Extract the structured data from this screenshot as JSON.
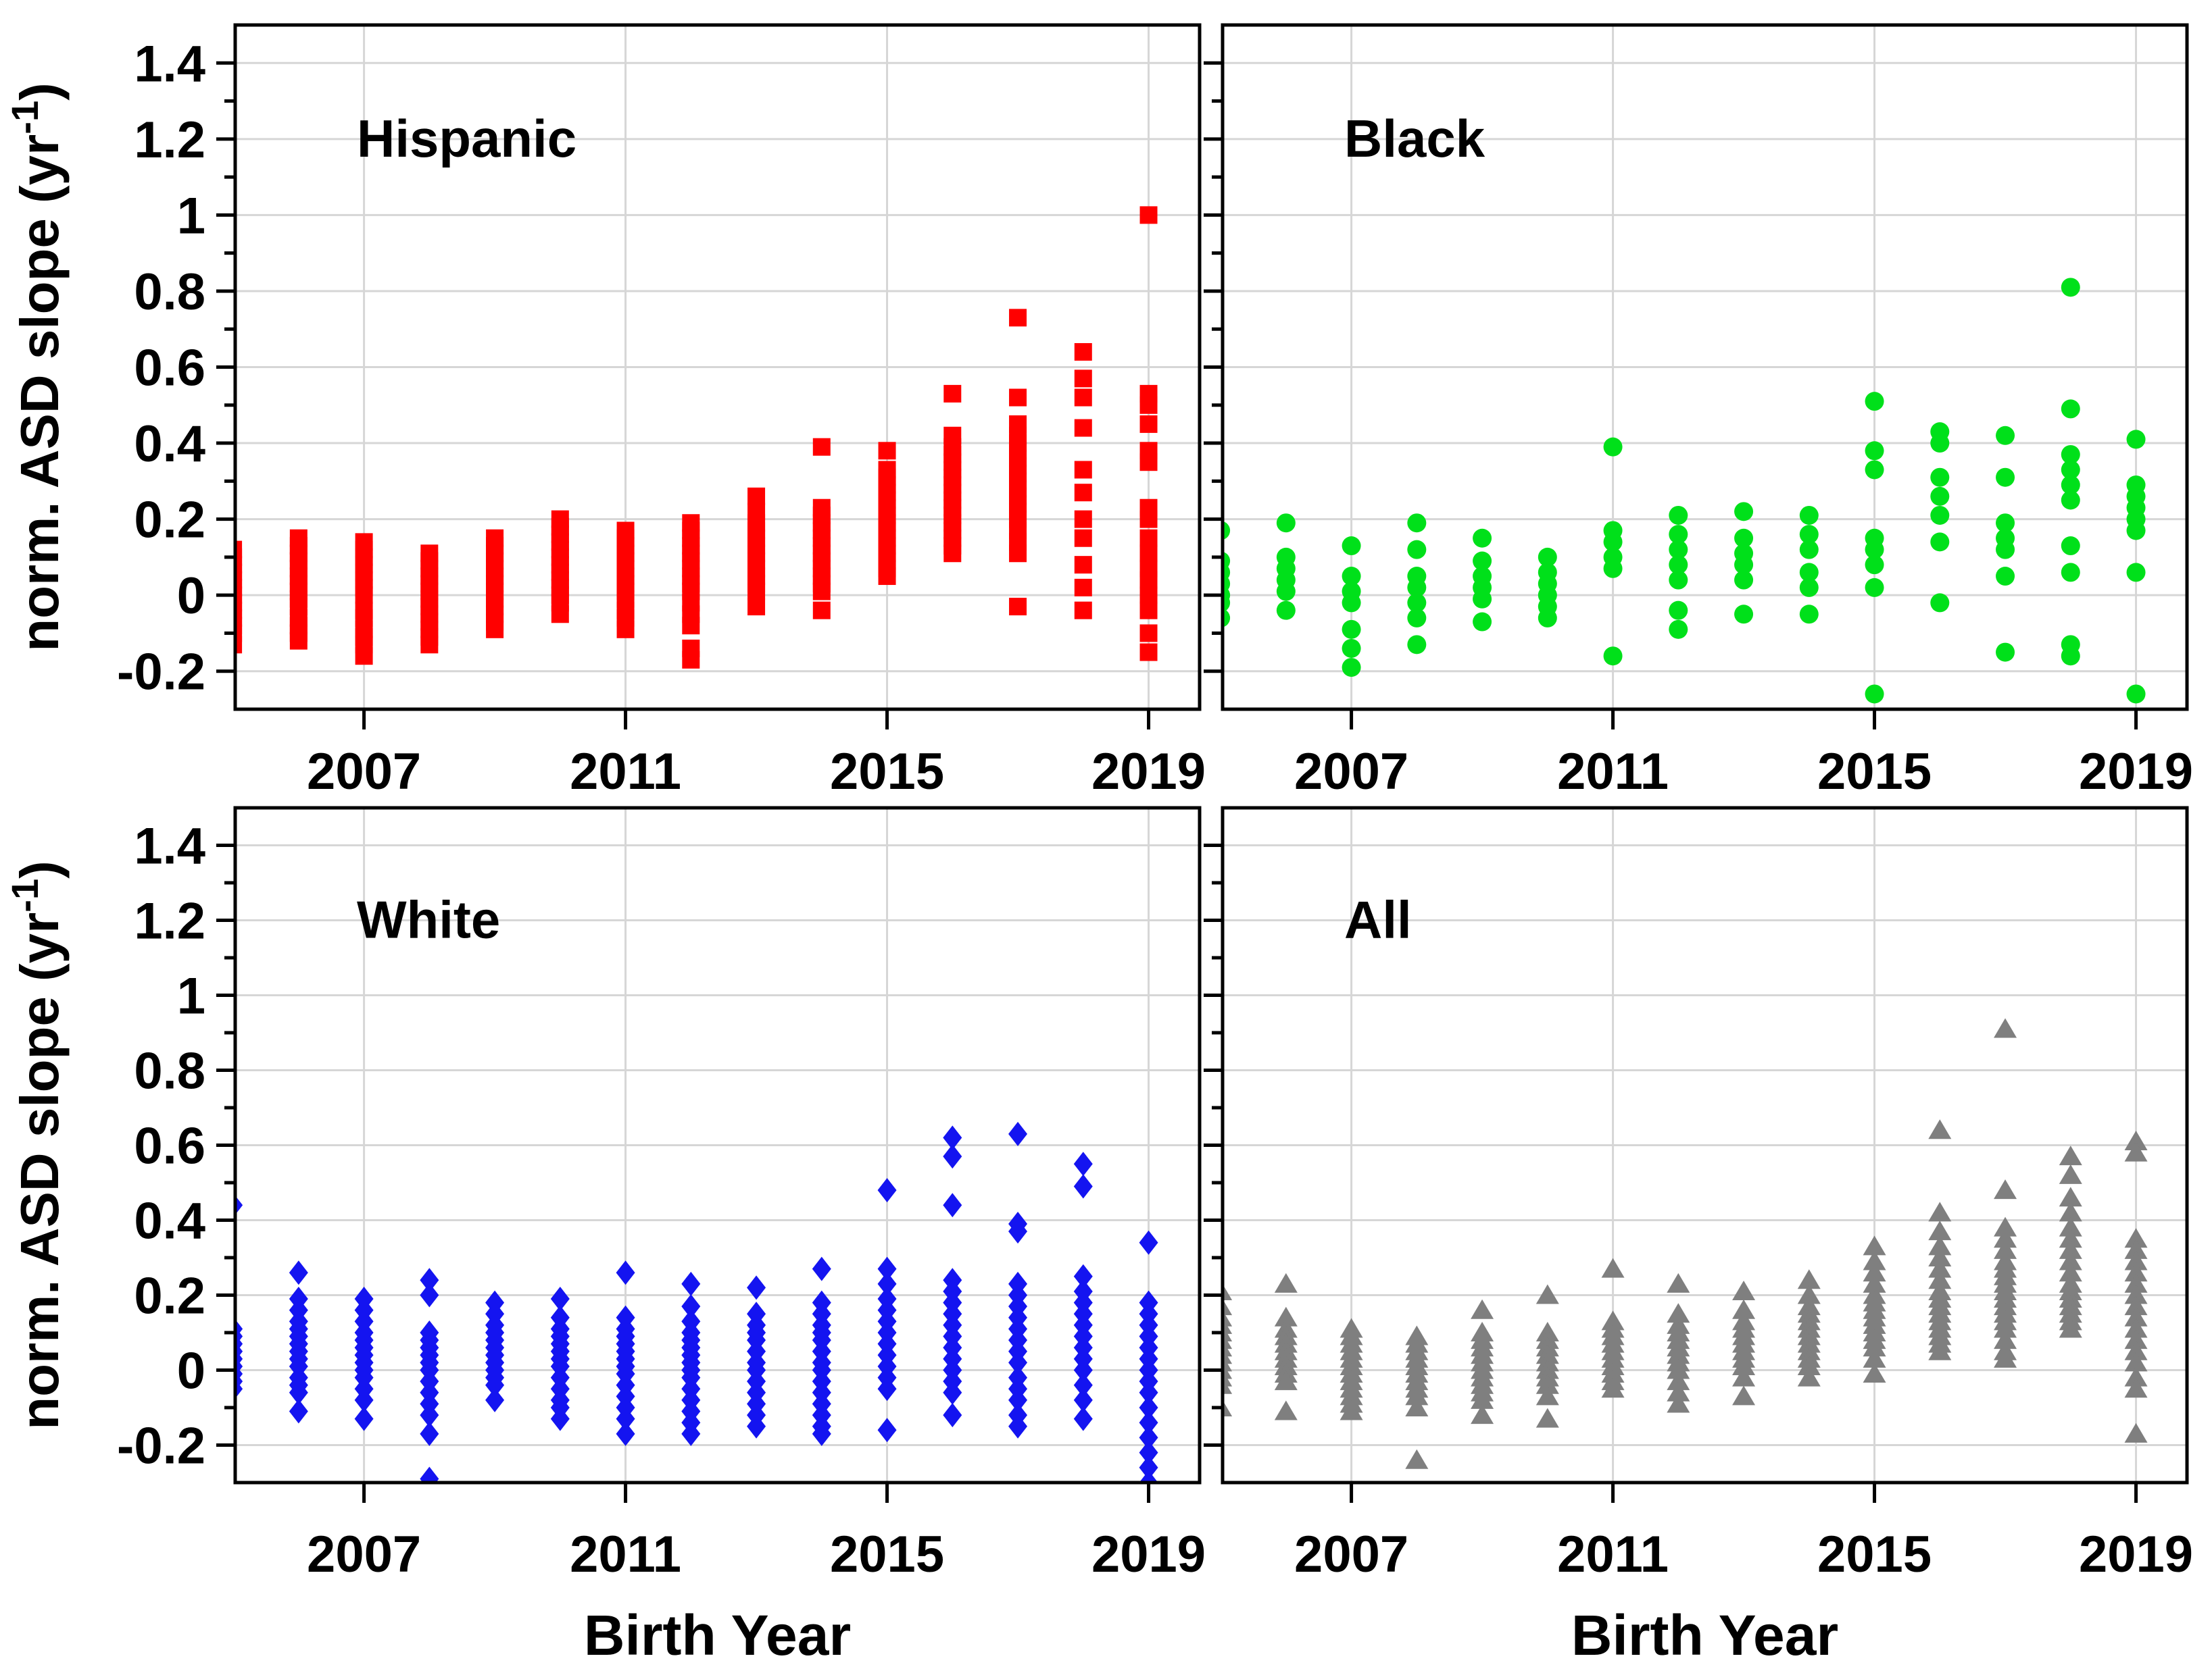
{
  "figure": {
    "xlabel": "Birth Year",
    "ylabel_main": "norm. ASD slope (yr",
    "ylabel_sup": "-1",
    "ylabel_end": ")"
  },
  "chart_data": {
    "type": "scatter",
    "title": "",
    "xlabel": "Birth Year",
    "ylabel": "norm. ASD slope (yr^-1)",
    "xlim": [
      2005.03,
      2019.78
    ],
    "ylim": [
      -0.3,
      1.5
    ],
    "grid": true,
    "grid_color": "#d6d6d6",
    "axis_color": "#000000",
    "x_ticks": {
      "values": [
        2007,
        2011,
        2015,
        2019
      ],
      "labels": [
        "2007",
        "2011",
        "2015",
        "2019"
      ]
    },
    "y_ticks": {
      "values": [
        -0.2,
        0,
        0.2,
        0.4,
        0.6,
        0.8,
        1,
        1.2,
        1.4
      ],
      "labels": [
        "-0.2",
        "0",
        "0.2",
        "0.4",
        "0.6",
        "0.8",
        "1",
        "1.2",
        "1.4"
      ],
      "minor": [
        -0.1,
        0.1,
        0.3,
        0.5,
        0.7,
        0.9,
        1.1,
        1.3
      ]
    },
    "panels": [
      {
        "label": "Hispanic",
        "marker": "square",
        "color": "#ff0000",
        "position": "top-left",
        "points": {
          "2005": [
            0.12,
            0.1,
            0.08,
            0.06,
            0.04,
            0.02,
            0.0,
            -0.02,
            -0.04,
            -0.06,
            -0.08,
            -0.1,
            -0.13
          ],
          "2006": [
            0.15,
            0.13,
            0.11,
            0.09,
            0.07,
            0.05,
            0.03,
            0.01,
            -0.01,
            -0.03,
            -0.06,
            -0.08,
            -0.1,
            -0.12
          ],
          "2007": [
            0.14,
            0.12,
            0.1,
            0.08,
            0.06,
            0.04,
            0.02,
            0.0,
            -0.04,
            -0.06,
            -0.09,
            -0.11,
            -0.13,
            -0.16
          ],
          "2008": [
            0.11,
            0.09,
            0.07,
            0.05,
            0.03,
            0.01,
            -0.01,
            -0.03,
            -0.05,
            -0.07,
            -0.09,
            -0.11,
            -0.13
          ],
          "2009": [
            0.15,
            0.13,
            0.11,
            0.09,
            0.07,
            0.05,
            0.03,
            0.01,
            -0.01,
            -0.03,
            -0.05,
            -0.07,
            -0.09
          ],
          "2010": [
            0.2,
            0.18,
            0.16,
            0.14,
            0.12,
            0.1,
            0.08,
            0.06,
            0.04,
            0.02,
            0.0,
            -0.02,
            -0.05
          ],
          "2011": [
            0.17,
            0.15,
            0.13,
            0.11,
            0.09,
            0.07,
            0.05,
            0.03,
            0.01,
            -0.01,
            -0.04,
            -0.06,
            -0.09
          ],
          "2012": [
            0.19,
            0.17,
            0.15,
            0.13,
            0.11,
            0.09,
            0.07,
            0.05,
            0.03,
            0.01,
            -0.02,
            -0.05,
            -0.08,
            -0.14,
            -0.17
          ],
          "2013": [
            0.26,
            0.22,
            0.19,
            0.17,
            0.15,
            0.13,
            0.11,
            0.09,
            0.07,
            0.05,
            0.03,
            0.01,
            -0.03
          ],
          "2014": [
            0.39,
            0.23,
            0.21,
            0.19,
            0.17,
            0.15,
            0.13,
            0.11,
            0.09,
            0.07,
            0.05,
            0.03,
            0.01,
            -0.04
          ],
          "2015": [
            0.38,
            0.33,
            0.31,
            0.29,
            0.27,
            0.25,
            0.23,
            0.21,
            0.19,
            0.17,
            0.15,
            0.13,
            0.11,
            0.09,
            0.07,
            0.05
          ],
          "2016": [
            0.53,
            0.42,
            0.39,
            0.37,
            0.35,
            0.33,
            0.31,
            0.29,
            0.27,
            0.25,
            0.23,
            0.21,
            0.19,
            0.17,
            0.15,
            0.13,
            0.11
          ],
          "2017": [
            0.73,
            0.52,
            0.45,
            0.42,
            0.4,
            0.38,
            0.36,
            0.34,
            0.32,
            0.3,
            0.28,
            0.26,
            0.24,
            0.22,
            0.2,
            0.17,
            0.14,
            0.11,
            -0.03
          ],
          "2018": [
            0.64,
            0.57,
            0.52,
            0.44,
            0.33,
            0.27,
            0.2,
            0.15,
            0.08,
            0.02,
            -0.04
          ],
          "2019": [
            1.0,
            0.53,
            0.5,
            0.45,
            0.38,
            0.35,
            0.23,
            0.2,
            0.15,
            0.11,
            0.07,
            0.04,
            0.0,
            -0.04,
            -0.1,
            -0.15
          ]
        }
      },
      {
        "label": "Black",
        "marker": "circle",
        "color": "#00e01a",
        "position": "top-right",
        "points": {
          "2005": [
            0.17,
            0.09,
            0.06,
            0.03,
            0.0,
            -0.02,
            -0.06
          ],
          "2006": [
            0.19,
            0.1,
            0.07,
            0.04,
            0.01,
            -0.04
          ],
          "2007": [
            0.13,
            0.05,
            0.01,
            -0.02,
            -0.09,
            -0.14,
            -0.19
          ],
          "2008": [
            0.19,
            0.12,
            0.05,
            0.02,
            -0.02,
            -0.06,
            -0.13
          ],
          "2009": [
            0.15,
            0.09,
            0.05,
            0.02,
            -0.01,
            -0.07
          ],
          "2010": [
            0.1,
            0.06,
            0.03,
            0.0,
            -0.03,
            -0.06
          ],
          "2011": [
            0.39,
            0.17,
            0.14,
            0.1,
            0.07,
            -0.16
          ],
          "2012": [
            0.21,
            0.16,
            0.12,
            0.08,
            0.04,
            -0.04,
            -0.09
          ],
          "2013": [
            0.22,
            0.15,
            0.11,
            0.08,
            0.04,
            -0.05
          ],
          "2014": [
            0.21,
            0.16,
            0.12,
            0.06,
            0.02,
            -0.05
          ],
          "2015": [
            0.51,
            0.38,
            0.33,
            0.15,
            0.12,
            0.08,
            0.02,
            -0.26
          ],
          "2016": [
            0.43,
            0.4,
            0.31,
            0.26,
            0.21,
            0.14,
            -0.02
          ],
          "2017": [
            0.42,
            0.31,
            0.19,
            0.15,
            0.12,
            0.05,
            -0.15
          ],
          "2018": [
            0.81,
            0.49,
            0.37,
            0.33,
            0.29,
            0.25,
            0.13,
            0.06,
            -0.13,
            -0.16
          ],
          "2019": [
            0.41,
            0.29,
            0.26,
            0.23,
            0.2,
            0.17,
            0.06,
            -0.26
          ]
        }
      },
      {
        "label": "White",
        "marker": "diamond",
        "color": "#1414f0",
        "position": "bottom-left",
        "points": {
          "2005": [
            0.44,
            0.11,
            0.09,
            0.07,
            0.05,
            0.03,
            0.01,
            -0.01,
            -0.03,
            -0.05
          ],
          "2006": [
            0.26,
            0.19,
            0.16,
            0.13,
            0.11,
            0.09,
            0.07,
            0.05,
            0.03,
            0.01,
            -0.02,
            -0.04,
            -0.06,
            -0.11
          ],
          "2007": [
            0.19,
            0.16,
            0.13,
            0.1,
            0.08,
            0.06,
            0.04,
            0.02,
            0.0,
            -0.02,
            -0.05,
            -0.08,
            -0.13
          ],
          "2008": [
            0.24,
            0.2,
            0.1,
            0.08,
            0.06,
            0.04,
            0.02,
            0.0,
            -0.03,
            -0.06,
            -0.09,
            -0.12,
            -0.17,
            -0.29
          ],
          "2009": [
            0.18,
            0.15,
            0.12,
            0.1,
            0.08,
            0.06,
            0.04,
            0.02,
            0.0,
            -0.02,
            -0.04,
            -0.08
          ],
          "2010": [
            0.19,
            0.14,
            0.11,
            0.09,
            0.07,
            0.05,
            0.03,
            0.01,
            -0.02,
            -0.05,
            -0.08,
            -0.1,
            -0.13
          ],
          "2011": [
            0.26,
            0.14,
            0.11,
            0.09,
            0.07,
            0.05,
            0.03,
            0.01,
            -0.01,
            -0.04,
            -0.07,
            -0.1,
            -0.13,
            -0.17
          ],
          "2012": [
            0.23,
            0.17,
            0.13,
            0.1,
            0.08,
            0.06,
            0.04,
            0.02,
            0.0,
            -0.02,
            -0.05,
            -0.08,
            -0.11,
            -0.14,
            -0.17
          ],
          "2013": [
            0.22,
            0.15,
            0.12,
            0.1,
            0.08,
            0.05,
            0.02,
            0.0,
            -0.03,
            -0.06,
            -0.09,
            -0.12,
            -0.15
          ],
          "2014": [
            0.27,
            0.18,
            0.15,
            0.12,
            0.1,
            0.08,
            0.05,
            0.02,
            0.0,
            -0.03,
            -0.06,
            -0.09,
            -0.12,
            -0.15,
            -0.17
          ],
          "2015": [
            0.48,
            0.27,
            0.23,
            0.19,
            0.16,
            0.13,
            0.1,
            0.07,
            0.04,
            0.01,
            -0.02,
            -0.05,
            -0.16
          ],
          "2016": [
            0.62,
            0.57,
            0.44,
            0.24,
            0.21,
            0.18,
            0.15,
            0.12,
            0.09,
            0.06,
            0.03,
            0.0,
            -0.03,
            -0.06,
            -0.12
          ],
          "2017": [
            0.63,
            0.39,
            0.37,
            0.23,
            0.2,
            0.17,
            0.14,
            0.11,
            0.08,
            0.05,
            0.02,
            -0.02,
            -0.05,
            -0.08,
            -0.12,
            -0.15
          ],
          "2018": [
            0.55,
            0.49,
            0.25,
            0.21,
            0.18,
            0.15,
            0.12,
            0.09,
            0.06,
            0.03,
            0.0,
            -0.04,
            -0.08,
            -0.13
          ],
          "2019": [
            0.34,
            0.18,
            0.15,
            0.12,
            0.09,
            0.06,
            0.03,
            0.0,
            -0.03,
            -0.06,
            -0.1,
            -0.14,
            -0.18,
            -0.22,
            -0.26,
            -0.3
          ]
        }
      },
      {
        "label": "All",
        "marker": "triangle",
        "color": "#7f7f7f",
        "position": "bottom-right",
        "points": {
          "2005": [
            0.21,
            0.17,
            0.14,
            0.12,
            0.1,
            0.08,
            0.06,
            0.04,
            0.02,
            0.0,
            -0.02,
            -0.04,
            -0.1
          ],
          "2006": [
            0.23,
            0.14,
            0.11,
            0.09,
            0.07,
            0.05,
            0.03,
            0.01,
            -0.01,
            -0.03,
            -0.11
          ],
          "2007": [
            0.11,
            0.09,
            0.07,
            0.05,
            0.03,
            0.01,
            -0.01,
            -0.03,
            -0.05,
            -0.07,
            -0.09,
            -0.11
          ],
          "2008": [
            0.09,
            0.07,
            0.05,
            0.03,
            0.01,
            -0.01,
            -0.03,
            -0.05,
            -0.07,
            -0.1,
            -0.24
          ],
          "2009": [
            0.16,
            0.1,
            0.08,
            0.06,
            0.04,
            0.02,
            0.0,
            -0.02,
            -0.04,
            -0.06,
            -0.08,
            -0.12
          ],
          "2010": [
            0.2,
            0.1,
            0.08,
            0.06,
            0.04,
            0.02,
            0.0,
            -0.02,
            -0.04,
            -0.07,
            -0.13
          ],
          "2011": [
            0.27,
            0.13,
            0.11,
            0.09,
            0.07,
            0.05,
            0.03,
            0.01,
            -0.01,
            -0.03,
            -0.05
          ],
          "2012": [
            0.23,
            0.15,
            0.12,
            0.1,
            0.08,
            0.06,
            0.04,
            0.02,
            0.0,
            -0.03,
            -0.06,
            -0.09
          ],
          "2013": [
            0.21,
            0.16,
            0.13,
            0.11,
            0.09,
            0.07,
            0.05,
            0.03,
            0.01,
            -0.02,
            -0.07
          ],
          "2014": [
            0.24,
            0.2,
            0.17,
            0.15,
            0.13,
            0.11,
            0.09,
            0.07,
            0.05,
            0.03,
            0.01,
            -0.02
          ],
          "2015": [
            0.33,
            0.29,
            0.26,
            0.23,
            0.2,
            0.18,
            0.16,
            0.14,
            0.12,
            0.1,
            0.08,
            0.06,
            0.03,
            -0.01
          ],
          "2016": [
            0.64,
            0.42,
            0.37,
            0.33,
            0.3,
            0.27,
            0.24,
            0.21,
            0.19,
            0.17,
            0.15,
            0.13,
            0.11,
            0.09,
            0.07,
            0.05
          ],
          "2017": [
            0.91,
            0.48,
            0.38,
            0.35,
            0.32,
            0.29,
            0.27,
            0.25,
            0.23,
            0.21,
            0.19,
            0.17,
            0.15,
            0.13,
            0.11,
            0.08,
            0.05,
            0.03
          ],
          "2018": [
            0.57,
            0.52,
            0.46,
            0.42,
            0.38,
            0.35,
            0.32,
            0.29,
            0.26,
            0.23,
            0.21,
            0.19,
            0.17,
            0.15,
            0.13,
            0.11
          ],
          "2019": [
            0.61,
            0.58,
            0.35,
            0.32,
            0.29,
            0.26,
            0.23,
            0.2,
            0.17,
            0.14,
            0.11,
            0.08,
            0.05,
            0.02,
            -0.02,
            -0.05,
            -0.17
          ]
        }
      }
    ]
  }
}
